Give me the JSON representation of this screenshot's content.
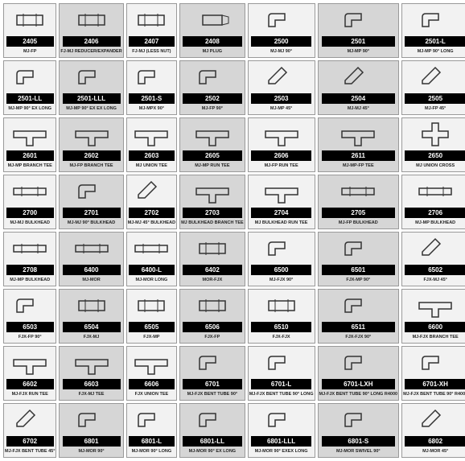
{
  "grid": {
    "cols": 7,
    "rows": 8,
    "cell_bg_dark": "#d6d6d6",
    "cell_bg_light": "#f2f2f2",
    "code_bar_bg": "#000000",
    "code_bar_fg": "#ffffff"
  },
  "items": [
    {
      "code": "2405",
      "desc": "MJ-FP",
      "shape": "coupling",
      "shade": "light"
    },
    {
      "code": "2406",
      "desc": "FJ-MJ REDUCER/EXPANDER",
      "shape": "coupling",
      "shade": "dark"
    },
    {
      "code": "2407",
      "desc": "FJ-MJ (LESS NUT)",
      "shape": "coupling",
      "shade": "light"
    },
    {
      "code": "2408",
      "desc": "MJ PLUG",
      "shape": "plug",
      "shade": "dark"
    },
    {
      "code": "2500",
      "desc": "MJ-MJ 90°",
      "shape": "elbow",
      "shade": "light"
    },
    {
      "code": "2501",
      "desc": "MJ-MP 90°",
      "shape": "elbow",
      "shade": "dark"
    },
    {
      "code": "2501-L",
      "desc": "MJ-MP 90° LONG",
      "shape": "elbow",
      "shade": "light"
    },
    {
      "code": "2501-LL",
      "desc": "MJ-MP 90° EX LONG",
      "shape": "elbow",
      "shade": "light"
    },
    {
      "code": "2501-LLL",
      "desc": "MJ-MP 90° EX EX LONG",
      "shape": "elbow",
      "shade": "dark"
    },
    {
      "code": "2501-S",
      "desc": "MJ-MPX 90°",
      "shape": "elbow",
      "shade": "light"
    },
    {
      "code": "2502",
      "desc": "MJ-FP 90°",
      "shape": "elbow",
      "shade": "dark"
    },
    {
      "code": "2503",
      "desc": "MJ-MP 45°",
      "shape": "elbow45",
      "shade": "light"
    },
    {
      "code": "2504",
      "desc": "MJ-MJ 45°",
      "shape": "elbow45",
      "shade": "dark"
    },
    {
      "code": "2505",
      "desc": "MJ-FP 45°",
      "shape": "elbow45",
      "shade": "light"
    },
    {
      "code": "2601",
      "desc": "MJ-MP BRANCH TEE",
      "shape": "tee",
      "shade": "light"
    },
    {
      "code": "2602",
      "desc": "MJ-FP BRANCH TEE",
      "shape": "tee",
      "shade": "dark"
    },
    {
      "code": "2603",
      "desc": "MJ UNION TEE",
      "shape": "tee",
      "shade": "light"
    },
    {
      "code": "2605",
      "desc": "MJ-MP RUN TEE",
      "shape": "tee",
      "shade": "dark"
    },
    {
      "code": "2606",
      "desc": "MJ-FP RUN TEE",
      "shape": "tee",
      "shade": "light"
    },
    {
      "code": "2611",
      "desc": "MJ-MP-FP TEE",
      "shape": "tee",
      "shade": "dark"
    },
    {
      "code": "2650",
      "desc": "MJ UNION CROSS",
      "shape": "cross",
      "shade": "light"
    },
    {
      "code": "2700",
      "desc": "MJ-MJ BULKHEAD",
      "shape": "straight",
      "shade": "light"
    },
    {
      "code": "2701",
      "desc": "MJ-MJ 90° BULKHEAD",
      "shape": "elbow",
      "shade": "dark"
    },
    {
      "code": "2702",
      "desc": "MJ-MJ 45° BULKHEAD",
      "shape": "elbow45",
      "shade": "light"
    },
    {
      "code": "2703",
      "desc": "MJ BULKHEAD BRANCH TEE",
      "shape": "tee",
      "shade": "dark"
    },
    {
      "code": "2704",
      "desc": "MJ BULKHEAD RUN TEE",
      "shape": "tee",
      "shade": "light"
    },
    {
      "code": "2705",
      "desc": "MJ-FP BULKHEAD",
      "shape": "straight",
      "shade": "dark"
    },
    {
      "code": "2706",
      "desc": "MJ-MP BULKHEAD",
      "shape": "straight",
      "shade": "light"
    },
    {
      "code": "2708",
      "desc": "MJ-MP BULKHEAD",
      "shape": "straight",
      "shade": "light"
    },
    {
      "code": "6400",
      "desc": "MJ-MOR",
      "shape": "straight",
      "shade": "dark"
    },
    {
      "code": "6400-L",
      "desc": "MJ-MOR LONG",
      "shape": "straight",
      "shade": "light"
    },
    {
      "code": "6402",
      "desc": "MOR-FJX",
      "shape": "coupling",
      "shade": "dark"
    },
    {
      "code": "6500",
      "desc": "MJ-FJX 90°",
      "shape": "elbow",
      "shade": "light"
    },
    {
      "code": "6501",
      "desc": "FJX-MP 90°",
      "shape": "elbow",
      "shade": "dark"
    },
    {
      "code": "6502",
      "desc": "FJX-MJ 45°",
      "shape": "elbow45",
      "shade": "light"
    },
    {
      "code": "6503",
      "desc": "FJX-FP 90°",
      "shape": "elbow",
      "shade": "light"
    },
    {
      "code": "6504",
      "desc": "FJX-MJ",
      "shape": "coupling",
      "shade": "dark"
    },
    {
      "code": "6505",
      "desc": "FJX-MP",
      "shape": "coupling",
      "shade": "light"
    },
    {
      "code": "6506",
      "desc": "FJX-FP",
      "shape": "coupling",
      "shade": "dark"
    },
    {
      "code": "6510",
      "desc": "FJX-FJX",
      "shape": "coupling",
      "shade": "light"
    },
    {
      "code": "6511",
      "desc": "FJX-FJX 90°",
      "shape": "elbow",
      "shade": "dark"
    },
    {
      "code": "6600",
      "desc": "MJ-FJX BRANCH TEE",
      "shape": "tee",
      "shade": "light"
    },
    {
      "code": "6602",
      "desc": "MJ-FJX RUN TEE",
      "shape": "tee",
      "shade": "light"
    },
    {
      "code": "6603",
      "desc": "FJX-MJ TEE",
      "shape": "tee",
      "shade": "dark"
    },
    {
      "code": "6606",
      "desc": "FJX UNION TEE",
      "shape": "tee",
      "shade": "light"
    },
    {
      "code": "6701",
      "desc": "MJ-FJX BENT TUBE 90°",
      "shape": "elbow",
      "shade": "dark"
    },
    {
      "code": "6701-L",
      "desc": "MJ-FJX BENT TUBE 90° LONG",
      "shape": "elbow",
      "shade": "light"
    },
    {
      "code": "6701-LXH",
      "desc": "MJ-FJX BENT TUBE 90° LONG R4000",
      "shape": "elbow",
      "shade": "dark"
    },
    {
      "code": "6701-XH",
      "desc": "MJ-FJX BENT TUBE 90° R4000",
      "shape": "elbow",
      "shade": "light"
    },
    {
      "code": "6702",
      "desc": "MJ-FJX BENT TUBE 45°",
      "shape": "elbow45",
      "shade": "light"
    },
    {
      "code": "6801",
      "desc": "MJ-MOR 90°",
      "shape": "elbow",
      "shade": "dark"
    },
    {
      "code": "6801-L",
      "desc": "MJ-MOR 90° LONG",
      "shape": "elbow",
      "shade": "light"
    },
    {
      "code": "6801-LL",
      "desc": "MJ-MOR 90° EX LONG",
      "shape": "elbow",
      "shade": "dark"
    },
    {
      "code": "6801-LLL",
      "desc": "MJ-MOR 90° EXEX LONG",
      "shape": "elbow",
      "shade": "light"
    },
    {
      "code": "6801-S",
      "desc": "MJ-MOR SWIVEL 90°",
      "shape": "elbow",
      "shade": "dark"
    },
    {
      "code": "6802",
      "desc": "MJ-MOR 45°",
      "shape": "elbow45",
      "shade": "light"
    }
  ],
  "shapes": {
    "coupling": "<rect x='12' y='12' width='32' height='12' fill='none' stroke='#333' stroke-width='1.5'/><line x1='20' y1='10' x2='20' y2='26' stroke='#333'/><line x1='36' y1='10' x2='36' y2='26' stroke='#333'/>",
    "plug": "<rect x='16' y='12' width='24' height='12' fill='none' stroke='#333' stroke-width='1.5'/><polygon points='40,12 48,14 48,22 40,24' fill='none' stroke='#333'/>",
    "elbow": "<path d='M 12 26 L 12 14 Q 12 10 16 10 L 32 10 L 32 18 L 20 18 L 20 26 Z' fill='none' stroke='#333' stroke-width='1.5'/>",
    "elbow45": "<path d='M 12 26 L 20 26 L 34 12 L 28 6 L 12 22 Z' fill='none' stroke='#333' stroke-width='1.5'/>",
    "tee": "<path d='M 8 14 L 48 14 L 48 22 L 32 22 L 32 32 L 24 32 L 24 22 L 8 22 Z' fill='none' stroke='#333' stroke-width='1.5'/>",
    "cross": "<path d='M 24 4 L 32 4 L 32 14 L 44 14 L 44 22 L 32 22 L 32 32 L 24 32 L 24 22 L 12 22 L 12 14 L 24 14 Z' fill='none' stroke='#333' stroke-width='1.5'/>",
    "straight": "<rect x='8' y='14' width='40' height='8' fill='none' stroke='#333' stroke-width='1.5'/><line x1='18' y1='12' x2='18' y2='24' stroke='#333'/><line x1='38' y1='12' x2='38' y2='24' stroke='#333'/>"
  }
}
